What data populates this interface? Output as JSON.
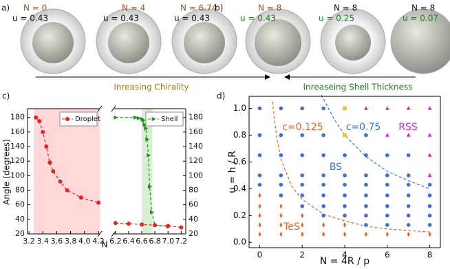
{
  "figure_a": {
    "label": "a)",
    "items": [
      {
        "n": "N = 0",
        "u": "u = 0.43"
      },
      {
        "n": "N = 4",
        "u": "u = 0.43"
      },
      {
        "n": "N = 6.74",
        "u": "u = 0.43"
      }
    ],
    "arrow": "Inreasing Chirality"
  },
  "figure_b": {
    "label": "b)",
    "items": [
      {
        "n": "N = 8",
        "u": "u = 0.43"
      },
      {
        "n": "N = 8",
        "u": "u = 0.25"
      },
      {
        "n": "N = 8",
        "u": "u = 0.07"
      }
    ],
    "arrow": "Inreaseing Shell Thickness"
  },
  "chart_data": [
    {
      "type": "line",
      "label": "c)",
      "ylabel": "Angle (degrees)",
      "xlabel": "N",
      "xlim": [
        3.18,
        4.22
      ],
      "xticks": [
        3.2,
        3.4,
        3.6,
        3.8,
        {
          "value": 4,
          "label": "4.0"
        },
        4.2
      ],
      "ylim": [
        20,
        192
      ],
      "yticks": [
        20,
        40,
        60,
        80,
        100,
        120,
        140,
        160,
        180
      ],
      "shade": [
        3.27,
        4.22
      ],
      "shade_color": "#ffd8d8",
      "legend": "upper right",
      "series": [
        {
          "name": "Droplet",
          "color": "#e8231f",
          "marker": "o",
          "x": [
            3.3,
            3.35,
            3.4,
            3.45,
            3.5,
            3.55,
            3.65,
            3.75,
            3.95,
            4.2
          ],
          "values": [
            180,
            175,
            160,
            140,
            118,
            106,
            92,
            80,
            70,
            63
          ]
        }
      ]
    },
    {
      "type": "line",
      "xlim": [
        6.17,
        7.27
      ],
      "xticks": [
        6.2,
        6.4,
        6.6,
        6.8,
        {
          "value": 7,
          "label": "7.0"
        },
        7.2
      ],
      "ylim": [
        20,
        192
      ],
      "yticks": [
        20,
        40,
        60,
        80,
        100,
        120,
        140,
        160,
        180
      ],
      "shade": [
        6.6,
        6.76
      ],
      "shade_color": "#d6eed2",
      "legend": "upper right",
      "series": [
        {
          "name": "Shell",
          "color": "#1e8c1e",
          "marker": ">",
          "x": [
            6.2,
            6.5,
            6.55,
            6.6,
            6.62,
            6.64,
            6.66,
            6.68,
            6.7,
            6.72,
            6.75,
            6.8,
            7.0
          ],
          "values": [
            180,
            180,
            179,
            178,
            176,
            170,
            165,
            150,
            128,
            85,
            50,
            32,
            30
          ]
        },
        {
          "color": "#e8231f",
          "marker": "o",
          "x": [
            6.2,
            6.4,
            6.6,
            6.8,
            7.0,
            7.2
          ],
          "values": [
            35,
            34,
            33,
            32,
            31,
            29
          ]
        }
      ]
    },
    {
      "type": "scatter",
      "label": "d)",
      "xlabel": "N = 4R / p",
      "ylabel": "u = h / R",
      "xlim": [
        -0.5,
        8.5
      ],
      "xticks": [
        0,
        2,
        4,
        6,
        8
      ],
      "ylim": [
        -0.04,
        1.09
      ],
      "yticks": [
        {
          "value": 0,
          "label": "0.0"
        },
        0.2,
        0.4,
        0.6,
        0.8,
        {
          "value": 1,
          "label": "1.0"
        }
      ],
      "series": [
        {
          "color": "#3a6fd8",
          "marker": "o",
          "x": [
            0,
            0,
            0,
            0,
            0,
            1,
            1,
            1,
            1,
            1,
            1,
            2,
            2,
            2,
            2,
            2,
            2,
            2,
            3,
            3,
            3,
            3,
            3,
            3,
            3,
            3,
            4,
            4,
            4,
            4,
            4,
            4,
            5,
            5,
            5,
            5,
            5,
            5,
            5,
            5,
            6,
            6,
            6,
            6,
            6,
            6,
            6,
            7,
            7,
            7,
            7,
            7,
            7,
            7,
            8,
            8,
            8,
            8,
            8
          ],
          "values": [
            0.43,
            0.5,
            0.65,
            0.8,
            1.0,
            0.35,
            0.43,
            0.5,
            0.65,
            0.8,
            1.0,
            0.27,
            0.35,
            0.43,
            0.5,
            0.65,
            0.8,
            1.0,
            0.2,
            0.27,
            0.35,
            0.43,
            0.5,
            0.65,
            0.8,
            1.0,
            0.2,
            0.27,
            0.35,
            0.43,
            0.5,
            0.65,
            0.13,
            0.2,
            0.27,
            0.35,
            0.43,
            0.5,
            0.65,
            0.8,
            0.13,
            0.2,
            0.27,
            0.35,
            0.43,
            0.5,
            0.65,
            0.13,
            0.2,
            0.27,
            0.35,
            0.43,
            0.5,
            0.65,
            0.13,
            0.2,
            0.27,
            0.35,
            0.43
          ]
        },
        {
          "color": "#f06020",
          "marker": "d",
          "x": [
            0,
            0,
            0,
            0,
            0,
            1,
            1,
            1,
            1,
            2,
            2,
            2,
            3,
            3,
            4,
            4,
            5,
            6,
            7,
            8
          ],
          "values": [
            0.06,
            0.13,
            0.2,
            0.27,
            0.35,
            0.06,
            0.13,
            0.2,
            0.27,
            0.06,
            0.13,
            0.2,
            0.06,
            0.13,
            0.06,
            0.13,
            0.06,
            0.06,
            0.06,
            0.06
          ]
        },
        {
          "color": "#e020e0",
          "marker": "^",
          "x": [
            5,
            6,
            6,
            7,
            7,
            8,
            8,
            8,
            8
          ],
          "values": [
            1.0,
            0.8,
            1.0,
            0.8,
            1.0,
            0.5,
            0.65,
            0.8,
            1.0
          ]
        },
        {
          "color": "#f0c020",
          "marker": "s",
          "x": [
            4,
            4
          ],
          "values": [
            0.8,
            1.0
          ]
        }
      ],
      "curves": [
        {
          "color": "#f06020",
          "x": [
            0.6,
            0.8,
            1,
            1.5,
            2,
            3,
            4,
            5,
            6,
            7,
            8
          ],
          "values": [
            1.05,
            0.78,
            0.62,
            0.42,
            0.32,
            0.21,
            0.16,
            0.12,
            0.1,
            0.088,
            0.077
          ]
        },
        {
          "color": "#3a6fd8",
          "x": [
            2.9,
            3.5,
            4,
            5,
            6,
            7,
            8
          ],
          "values": [
            1.1,
            0.92,
            0.8,
            0.64,
            0.53,
            0.46,
            0.4
          ]
        }
      ],
      "annotations": [
        {
          "text": "c=0.125",
          "color": "#f06020"
        },
        {
          "text": "c=0.75",
          "color": "#3a6fd8"
        },
        {
          "text": "RSS",
          "color": "#e020e0"
        },
        {
          "text": "BS",
          "color": "#3a6fd8"
        },
        {
          "text": "TeS",
          "color": "#f06020"
        }
      ]
    }
  ]
}
